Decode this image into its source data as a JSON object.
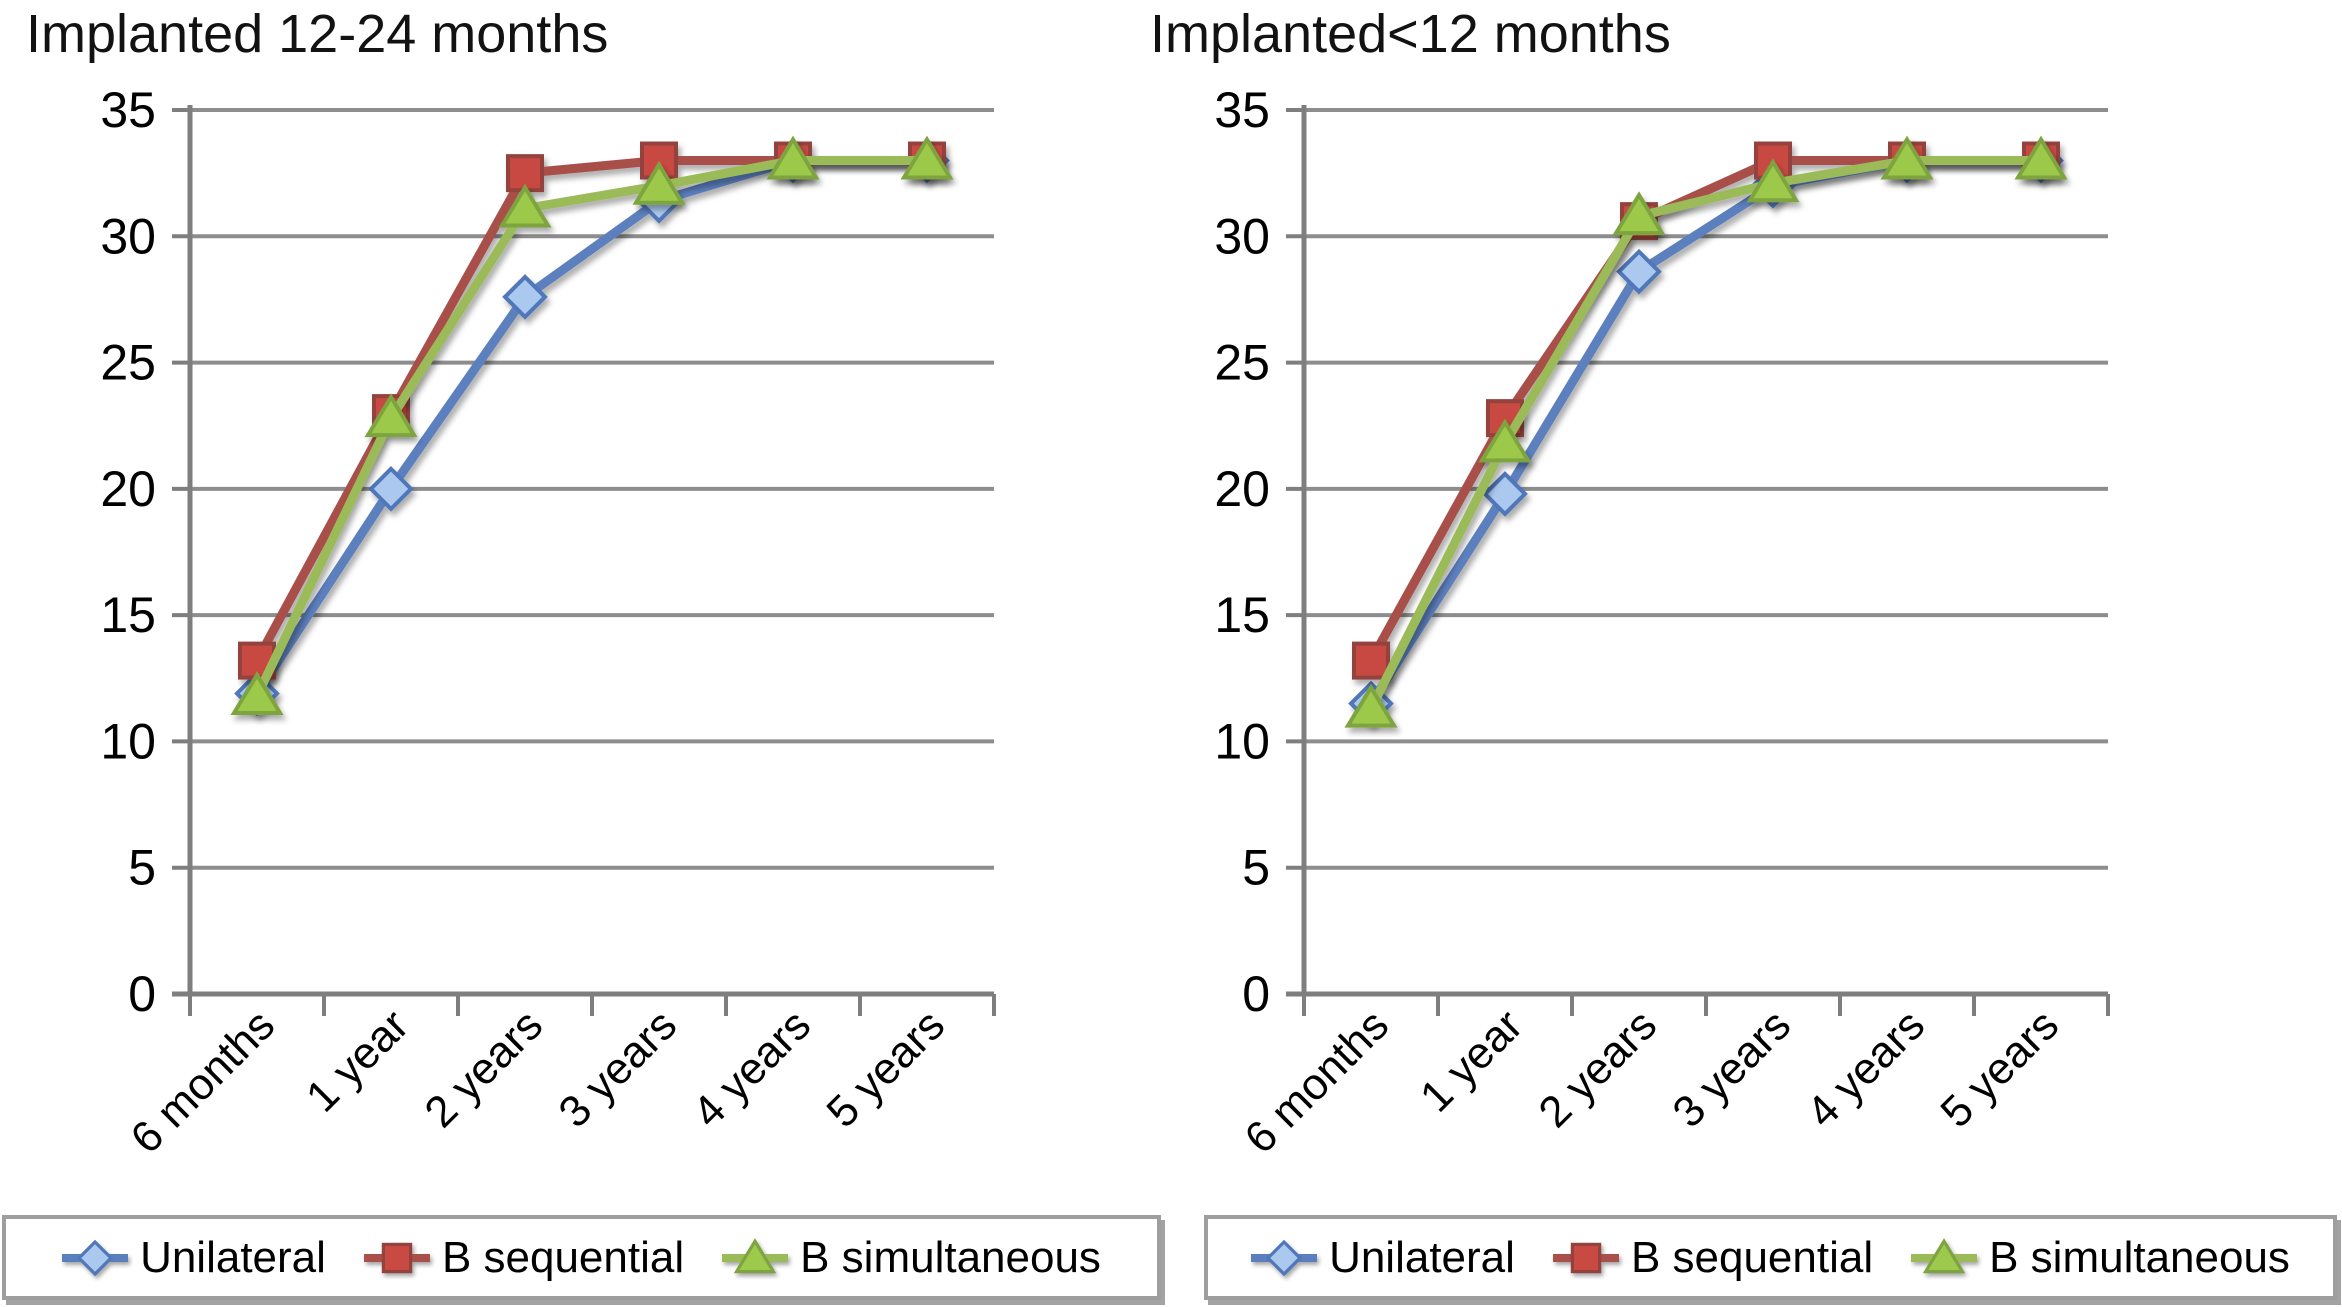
{
  "colors": {
    "background": "#ffffff",
    "gridline": "#8d8d8d",
    "axis": "#7e7e7e",
    "text": "#000000"
  },
  "chart_data": [
    {
      "type": "line",
      "title": "Implanted 12-24 months",
      "categories": [
        "6 months",
        "1 year",
        "2 years",
        "3 years",
        "4 years",
        "5 years"
      ],
      "xlabel": "",
      "ylabel": "",
      "ylim": [
        0,
        35
      ],
      "ytick_step": 5,
      "grid": "horizontal",
      "legend_position": "bottom",
      "series": [
        {
          "name": "Unilateral",
          "marker": "diamond",
          "line_color": "#5b7fbe",
          "marker_fill": "#abc8ef",
          "marker_stroke": "#4f77b9",
          "values": [
            11.9,
            20.0,
            27.6,
            31.4,
            33,
            33
          ]
        },
        {
          "name": "B sequential",
          "marker": "square",
          "line_color": "#a9504a",
          "marker_fill": "#c84a42",
          "marker_stroke": "#93423d",
          "values": [
            13.2,
            23.0,
            32.5,
            33.0,
            33,
            33
          ]
        },
        {
          "name": "B simultaneous",
          "marker": "triangle",
          "line_color": "#9bbb59",
          "marker_fill": "#9dc94c",
          "marker_stroke": "#7ea441",
          "values": [
            11.8,
            22.8,
            31.1,
            32.0,
            33,
            33
          ]
        }
      ]
    },
    {
      "type": "line",
      "title": "Implanted<12 months",
      "categories": [
        "6 months",
        "1 year",
        "2 years",
        "3 years",
        "4 years",
        "5 years"
      ],
      "xlabel": "",
      "ylabel": "",
      "ylim": [
        0,
        35
      ],
      "ytick_step": 5,
      "grid": "horizontal",
      "legend_position": "bottom",
      "series": [
        {
          "name": "Unilateral",
          "marker": "diamond",
          "line_color": "#5b7fbe",
          "marker_fill": "#abc8ef",
          "marker_stroke": "#4f77b9",
          "values": [
            11.5,
            19.8,
            28.6,
            32.0,
            33,
            33
          ]
        },
        {
          "name": "B sequential",
          "marker": "square",
          "line_color": "#a9504a",
          "marker_fill": "#c84a42",
          "marker_stroke": "#93423d",
          "values": [
            13.2,
            22.8,
            30.6,
            33.0,
            33,
            33
          ]
        },
        {
          "name": "B simultaneous",
          "marker": "triangle",
          "line_color": "#9bbb59",
          "marker_fill": "#9dc94c",
          "marker_stroke": "#7ea441",
          "values": [
            11.3,
            21.8,
            30.8,
            32.1,
            33,
            33
          ]
        }
      ]
    }
  ]
}
